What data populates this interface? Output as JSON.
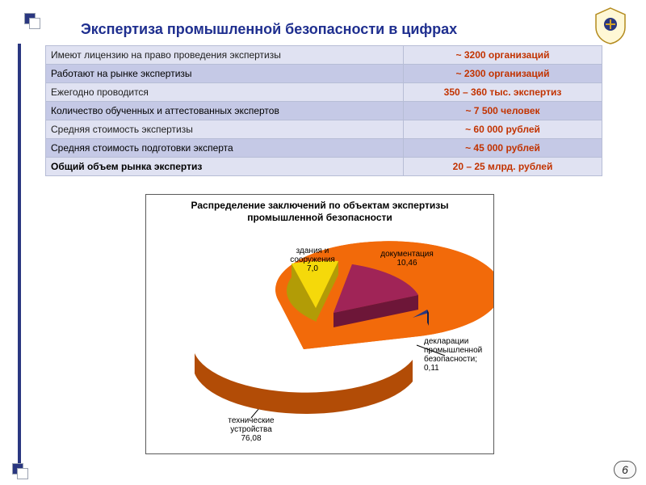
{
  "title": "Экспертиза промышленной безопасности  в цифрах",
  "page_number": "6",
  "table": {
    "rows": [
      {
        "label": "Имеют лицензию на право проведения экспертизы",
        "value": "~ 3200 организаций",
        "cls": "row-norm"
      },
      {
        "label": "Работают на рынке экспертизы",
        "value": "~ 2300 организаций",
        "cls": "row-alt"
      },
      {
        "label": "Ежегодно проводится",
        "value": "350 – 360 тыс. экспертиз",
        "cls": "row-norm"
      },
      {
        "label": "Количество обученных и аттестованных экспертов",
        "value": "~ 7 500 человек",
        "cls": "row-alt"
      },
      {
        "label": "Средняя стоимость экспертизы",
        "value": "~ 60 000 рублей",
        "cls": "row-norm"
      },
      {
        "label": "Средняя стоимость  подготовки эксперта",
        "value": "~ 45 000 рублей",
        "cls": "row-alt"
      },
      {
        "label": "Общий объем рынка экспертиз",
        "value": "20 – 25 млрд. рублей",
        "cls": "row-total"
      }
    ]
  },
  "chart": {
    "title": "Распределение заключений по объектам экспертизы промышленной безопасности",
    "type": "pie-3d-exploded",
    "colors": {
      "tech": "#f26a0a",
      "bldg": "#f5d90a",
      "doc": "#a02457",
      "decl": "#2a3780",
      "tech_side": "#b24c06",
      "bldg_side": "#b29c06",
      "doc_side": "#6d1638",
      "decl_side": "#161d45"
    },
    "slices": [
      {
        "key": "tech",
        "label": "технические устройства",
        "value": "76,08"
      },
      {
        "key": "bldg",
        "label": "здания и сооружения",
        "value": "7,0"
      },
      {
        "key": "doc",
        "label": "документация",
        "value": "10,46"
      },
      {
        "key": "decl",
        "label": "декларации промышленной безопасности;",
        "value": "0,11"
      }
    ]
  }
}
